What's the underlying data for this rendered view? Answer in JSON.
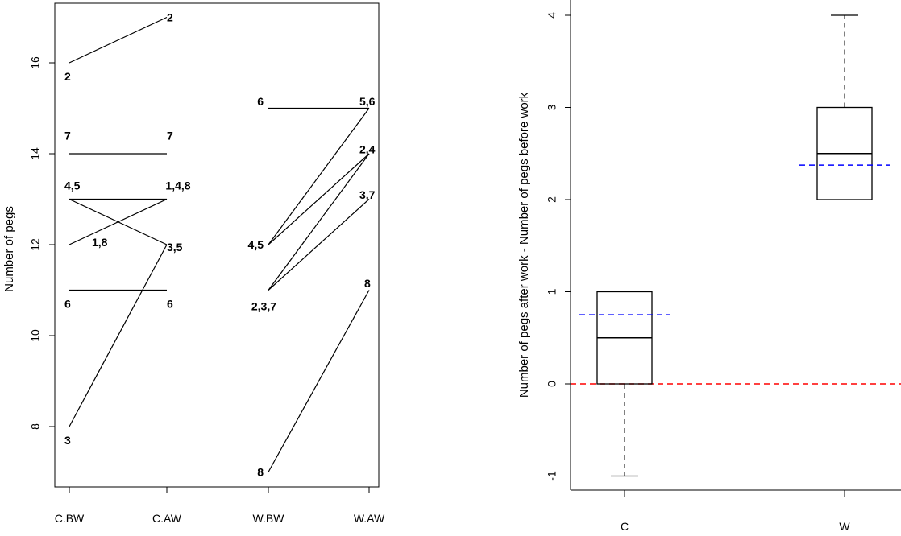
{
  "chart_data": [
    {
      "type": "line",
      "categories": [
        "C.BW",
        "C.AW",
        "W.BW",
        "W.AW"
      ],
      "ylabel": "Number of pegs",
      "yticks": [
        8,
        10,
        12,
        14,
        16
      ],
      "ylim": [
        7,
        17.5
      ],
      "grid": false,
      "segments": [
        {
          "from": [
            "C.BW",
            16
          ],
          "to": [
            "C.AW",
            17
          ]
        },
        {
          "from": [
            "C.BW",
            14
          ],
          "to": [
            "C.AW",
            14
          ]
        },
        {
          "from": [
            "C.BW",
            13
          ],
          "to": [
            "C.AW",
            13
          ]
        },
        {
          "from": [
            "C.BW",
            12
          ],
          "to": [
            "C.AW",
            13
          ]
        },
        {
          "from": [
            "C.BW",
            13
          ],
          "to": [
            "C.AW",
            12
          ]
        },
        {
          "from": [
            "C.BW",
            11
          ],
          "to": [
            "C.AW",
            11
          ]
        },
        {
          "from": [
            "C.BW",
            8
          ],
          "to": [
            "C.AW",
            12
          ]
        },
        {
          "from": [
            "W.BW",
            15
          ],
          "to": [
            "W.AW",
            15
          ]
        },
        {
          "from": [
            "W.BW",
            12
          ],
          "to": [
            "W.AW",
            15
          ]
        },
        {
          "from": [
            "W.BW",
            12
          ],
          "to": [
            "W.AW",
            14
          ]
        },
        {
          "from": [
            "W.BW",
            11
          ],
          "to": [
            "W.AW",
            14
          ]
        },
        {
          "from": [
            "W.BW",
            11
          ],
          "to": [
            "W.AW",
            13
          ]
        },
        {
          "from": [
            "W.BW",
            7
          ],
          "to": [
            "W.AW",
            11
          ]
        }
      ],
      "annotations": [
        {
          "text": "2",
          "category": "C.BW",
          "y": 15.7
        },
        {
          "text": "2",
          "category": "C.AW",
          "y": 17
        },
        {
          "text": "7",
          "category": "C.BW",
          "y": 14.4
        },
        {
          "text": "7",
          "category": "C.AW",
          "y": 14.4
        },
        {
          "text": "4,5",
          "category": "C.BW",
          "y": 13.3
        },
        {
          "text": "1,4,8",
          "category": "C.AW",
          "y": 13.3
        },
        {
          "text": "1,8",
          "category": "C.BW",
          "y": 12.05
        },
        {
          "text": "3,5",
          "category": "C.AW",
          "y": 11.95
        },
        {
          "text": "6",
          "category": "C.BW",
          "y": 10.7
        },
        {
          "text": "6",
          "category": "C.AW",
          "y": 10.7
        },
        {
          "text": "3",
          "category": "C.BW",
          "y": 7.7
        },
        {
          "text": "6",
          "category": "W.BW",
          "y": 15.15
        },
        {
          "text": "5,6",
          "category": "W.AW",
          "y": 15.15
        },
        {
          "text": "2,4",
          "category": "W.AW",
          "y": 14.1
        },
        {
          "text": "3,7",
          "category": "W.AW",
          "y": 13.1
        },
        {
          "text": "4,5",
          "category": "W.BW",
          "y": 12
        },
        {
          "text": "2,3,7",
          "category": "W.BW",
          "y": 10.65
        },
        {
          "text": "8",
          "category": "W.AW",
          "y": 11.15
        },
        {
          "text": "8",
          "category": "W.BW",
          "y": 7
        }
      ]
    },
    {
      "type": "box",
      "categories": [
        "C",
        "W"
      ],
      "ylabel": "Number of pegs after work - Number of pegs before work",
      "yticks": [
        -1,
        0,
        1,
        2,
        3,
        4
      ],
      "ylim": [
        -1.2,
        4.2
      ],
      "grid": false,
      "boxes": [
        {
          "category": "C",
          "whisker_low": -1,
          "q1": 0,
          "median": 0.5,
          "q3": 1,
          "whisker_high": 1,
          "mean": 0.75
        },
        {
          "category": "W",
          "whisker_low": 2,
          "q1": 2,
          "median": 2.5,
          "q3": 3,
          "whisker_high": 4,
          "mean": 2.375
        }
      ],
      "reference_line": {
        "y": 0,
        "color": "#ff0000"
      },
      "mean_color": "#0000ff"
    }
  ]
}
